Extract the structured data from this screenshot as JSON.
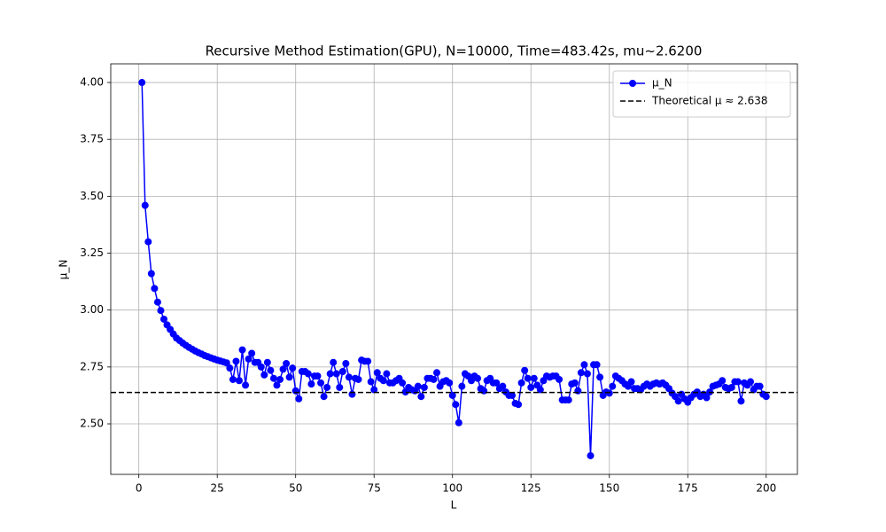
{
  "chart_data": {
    "type": "line",
    "title": "Recursive Method Estimation(GPU), N=10000, Time=483.42s, mu~2.6200",
    "xlabel": "L",
    "ylabel": "μ_N",
    "x": [
      1,
      2,
      3,
      4,
      5,
      6,
      7,
      8,
      9,
      10,
      11,
      12,
      13,
      14,
      15,
      16,
      17,
      18,
      19,
      20,
      21,
      22,
      23,
      24,
      25,
      26,
      27,
      28,
      29,
      30,
      31,
      32,
      33,
      34,
      35,
      36,
      37,
      38,
      39,
      40,
      41,
      42,
      43,
      44,
      45,
      46,
      47,
      48,
      49,
      50,
      51,
      52,
      53,
      54,
      55,
      56,
      57,
      58,
      59,
      60,
      61,
      62,
      63,
      64,
      65,
      66,
      67,
      68,
      69,
      70,
      71,
      72,
      73,
      74,
      75,
      76,
      77,
      78,
      79,
      80,
      81,
      82,
      83,
      84,
      85,
      86,
      87,
      88,
      89,
      90,
      91,
      92,
      93,
      94,
      95,
      96,
      97,
      98,
      99,
      100,
      101,
      102,
      103,
      104,
      105,
      106,
      107,
      108,
      109,
      110,
      111,
      112,
      113,
      114,
      115,
      116,
      117,
      118,
      119,
      120,
      121,
      122,
      123,
      124,
      125,
      126,
      127,
      128,
      129,
      130,
      131,
      132,
      133,
      134,
      135,
      136,
      137,
      138,
      139,
      140,
      141,
      142,
      143,
      144,
      145,
      146,
      147,
      148,
      149,
      150,
      151,
      152,
      153,
      154,
      155,
      156,
      157,
      158,
      159,
      160,
      161,
      162,
      163,
      164,
      165,
      166,
      167,
      168,
      169,
      170,
      171,
      172,
      173,
      174,
      175,
      176,
      177,
      178,
      179,
      180,
      181,
      182,
      183,
      184,
      185,
      186,
      187,
      188,
      189,
      190,
      191,
      192,
      193,
      194,
      195,
      196,
      197,
      198,
      199,
      200
    ],
    "series": [
      {
        "name": "μ_N",
        "color": "#0000ff",
        "values": [
          4.0,
          3.46,
          3.3,
          3.16,
          3.095,
          3.035,
          2.998,
          2.96,
          2.935,
          2.915,
          2.895,
          2.877,
          2.866,
          2.855,
          2.845,
          2.836,
          2.828,
          2.82,
          2.813,
          2.807,
          2.8,
          2.795,
          2.79,
          2.785,
          2.78,
          2.776,
          2.772,
          2.768,
          2.745,
          2.695,
          2.775,
          2.69,
          2.825,
          2.67,
          2.785,
          2.81,
          2.77,
          2.77,
          2.75,
          2.715,
          2.77,
          2.735,
          2.7,
          2.67,
          2.695,
          2.74,
          2.765,
          2.705,
          2.745,
          2.645,
          2.61,
          2.73,
          2.73,
          2.72,
          2.675,
          2.71,
          2.71,
          2.68,
          2.62,
          2.66,
          2.72,
          2.77,
          2.72,
          2.66,
          2.73,
          2.765,
          2.705,
          2.63,
          2.7,
          2.695,
          2.78,
          2.775,
          2.775,
          2.685,
          2.65,
          2.725,
          2.7,
          2.69,
          2.72,
          2.68,
          2.68,
          2.69,
          2.7,
          2.68,
          2.64,
          2.66,
          2.65,
          2.645,
          2.665,
          2.62,
          2.66,
          2.7,
          2.7,
          2.695,
          2.725,
          2.665,
          2.685,
          2.69,
          2.68,
          2.625,
          2.585,
          2.505,
          2.665,
          2.72,
          2.71,
          2.69,
          2.71,
          2.7,
          2.655,
          2.645,
          2.69,
          2.7,
          2.68,
          2.68,
          2.655,
          2.665,
          2.64,
          2.625,
          2.625,
          2.59,
          2.585,
          2.68,
          2.735,
          2.7,
          2.66,
          2.7,
          2.67,
          2.65,
          2.69,
          2.71,
          2.705,
          2.71,
          2.71,
          2.695,
          2.605,
          2.605,
          2.605,
          2.675,
          2.68,
          2.645,
          2.725,
          2.76,
          2.72,
          2.36,
          2.76,
          2.76,
          2.705,
          2.625,
          2.64,
          2.635,
          2.665,
          2.71,
          2.7,
          2.69,
          2.675,
          2.665,
          2.685,
          2.655,
          2.655,
          2.65,
          2.665,
          2.675,
          2.665,
          2.675,
          2.68,
          2.675,
          2.68,
          2.67,
          2.655,
          2.635,
          2.62,
          2.6,
          2.63,
          2.61,
          2.595,
          2.615,
          2.63,
          2.64,
          2.62,
          2.63,
          2.615,
          2.64,
          2.665,
          2.67,
          2.675,
          2.69,
          2.66,
          2.655,
          2.66,
          2.685,
          2.685,
          2.6,
          2.68,
          2.67,
          2.685,
          2.65,
          2.665,
          2.665,
          2.63,
          2.62
        ]
      }
    ],
    "reference_lines": [
      {
        "name": "Theoretical μ ≈ 2.638",
        "value": 2.638,
        "color": "#000000",
        "style": "dashed"
      }
    ],
    "xlim": [
      -8.95,
      209.95
    ],
    "ylim": [
      2.278,
      4.082
    ],
    "xticks": [
      0,
      25,
      50,
      75,
      100,
      125,
      150,
      175,
      200
    ],
    "yticks": [
      {
        "value": 2.5,
        "label": "2.50"
      },
      2.75,
      {
        "value": 3,
        "label": "3.00"
      },
      3.25,
      {
        "value": 3.5,
        "label": "3.50"
      },
      3.75,
      {
        "value": 4,
        "label": "4.00"
      }
    ],
    "grid": true,
    "legend": "upper right"
  }
}
